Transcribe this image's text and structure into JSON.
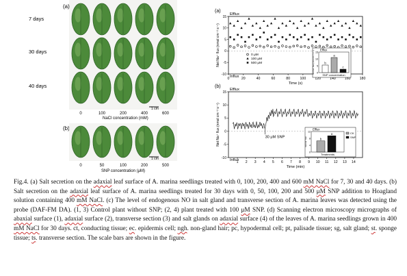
{
  "panel_left": {
    "label_a": "(a)",
    "label_b": "(b)",
    "rows": [
      "7 days",
      "30 days",
      "40 days"
    ],
    "nacl_ticks": [
      "0",
      "100",
      "200",
      "400",
      "600"
    ],
    "nacl_label": "NaCl concentration (mM)",
    "snp_ticks": [
      "0",
      "50",
      "100",
      "200",
      "500"
    ],
    "snp_label": "SNP concentration (μM)",
    "scale_a": "1 cm",
    "scale_b": "1 cm"
  },
  "colors": {
    "leaf": "#4c8a3a",
    "leaf_dark": "#2f6327",
    "leaf_light": "#8dbb6d"
  },
  "chart_data": [
    {
      "type": "scatter",
      "panel": "(a)",
      "xlabel": "Time (s)",
      "ylabel": "Net Na⁺ flux (nmol cm⁻² s⁻¹)",
      "xlim": [
        0,
        180
      ],
      "ylim": [
        -10,
        15
      ],
      "xticks": [
        0,
        20,
        40,
        60,
        80,
        100,
        120,
        140,
        160,
        180
      ],
      "yticks": [
        -10,
        -5,
        0,
        5,
        10,
        15
      ],
      "top_note": "Efflux",
      "bottom_note": "Influx",
      "series": [
        {
          "name": "0   μM",
          "marker": "circle-open",
          "y": [
            2.0,
            1.5,
            2.5,
            1.8,
            2.2,
            1.6,
            2.4,
            1.9,
            2.1,
            1.7,
            2.3,
            1.8,
            2.0,
            1.6,
            2.2,
            1.9,
            1.7,
            2.1,
            2.3,
            1.8,
            2.0,
            1.5,
            2.2,
            1.9,
            2.1,
            1.7,
            2.4,
            1.8,
            2.0,
            1.6,
            2.3,
            1.9,
            2.1,
            1.7,
            2.2,
            1.8
          ]
        },
        {
          "name": "100 μM",
          "marker": "triangle",
          "y": [
            12,
            11,
            13,
            10,
            12,
            14,
            11,
            12,
            10,
            13,
            11,
            12,
            14,
            10,
            12,
            11,
            13,
            12,
            10,
            13,
            11,
            12,
            14,
            11,
            12,
            10,
            13,
            11,
            12,
            13,
            11,
            12,
            10,
            13,
            12,
            11
          ]
        },
        {
          "name": "500 μM",
          "marker": "square",
          "y": [
            6,
            5,
            7,
            6,
            4,
            6,
            7,
            5,
            6,
            8,
            5,
            6,
            7,
            4,
            6,
            5,
            7,
            6,
            5,
            6,
            7,
            5,
            6,
            4,
            7,
            6,
            5,
            6,
            7,
            5,
            6,
            5,
            7,
            6,
            5,
            6
          ]
        }
      ],
      "inset": {
        "title": "Efflux",
        "ylabel": "Net Na⁺ flux (nmol cm⁻² s⁻¹)",
        "xlabel": "SNP concentration",
        "ylim": [
          0,
          15
        ],
        "yticks": [
          0,
          5,
          10,
          15
        ],
        "bars": [
          {
            "value": 5.5,
            "label": "b"
          },
          {
            "value": 11.0,
            "label": "a"
          },
          {
            "value": 2.5,
            "label": "c"
          }
        ]
      }
    },
    {
      "type": "line",
      "panel": "(b)",
      "xlabel": "Time (min)",
      "ylabel": "Net Na⁺ flux (nmol cm⁻² s⁻¹)",
      "xlim": [
        0,
        15
      ],
      "ylim": [
        -10,
        15
      ],
      "xticks": [
        1,
        2,
        3,
        4,
        5,
        6,
        7,
        8,
        9,
        10,
        11,
        12,
        13,
        14
      ],
      "yticks": [
        -10,
        -5,
        0,
        5,
        10,
        15
      ],
      "top_note": "Efflux",
      "bottom_note": "Influx",
      "annotation": "30 μM SNP",
      "inset": {
        "title": "Efflux",
        "ylabel": "Net Na⁺ flux",
        "xlabel": "Treatments",
        "ylim": [
          0,
          12
        ],
        "yticks": [
          0,
          4,
          8,
          12
        ],
        "legend": [
          "CK",
          "SNP"
        ],
        "bars": [
          {
            "name": "CK",
            "value": 6.5,
            "label": "b"
          },
          {
            "name": "SNP",
            "value": 9.5,
            "label": "a"
          }
        ]
      }
    }
  ],
  "caption": {
    "parts": [
      "Fig.4. (a) Salt secretion on the ",
      "adaxial",
      " leaf surface of A. marina seedlings treated with 0, 100, 200, 400 and 600 ",
      "mM NaCl",
      " for 7, 30 and 40 days. (b) Salt secretion on the ",
      "adaxial",
      " leaf surface of A. marina seedlings treated for 30 days with 0, 50, 100, 200 and 500 ",
      "μM",
      " SNP addition to Hoagland solution containing 400 ",
      "mM NaCl",
      ". (c) The level of endogenous NO in salt gland and transverse section of A. marina leaves was detected using the probe (DAF-FM DA). (1, 3) Control plant without SNP; (2, 4) plant treated with 100 ",
      "μM",
      " SNP. (d) Scanning electron microscopy micrographs of ",
      "abaxial",
      " surface (1), ",
      "adaxial",
      " surface (2), transverse section (3) and salt glands on ",
      "adaxial",
      " surface (4) of the leaves of A. marina seedlings grown in 400 ",
      "mM NaCl",
      " for 30 days. ct, conducting tissue; ",
      "ec",
      ". epidermis cell; ",
      "ngh",
      ". non-gland hair; pc, hypodermal cell; pt, palisade tissue; sg, salt gland; ",
      "st",
      ". sponge tissue; ",
      "ts",
      ". transverse section. The scale bars are shown in the figure."
    ]
  }
}
